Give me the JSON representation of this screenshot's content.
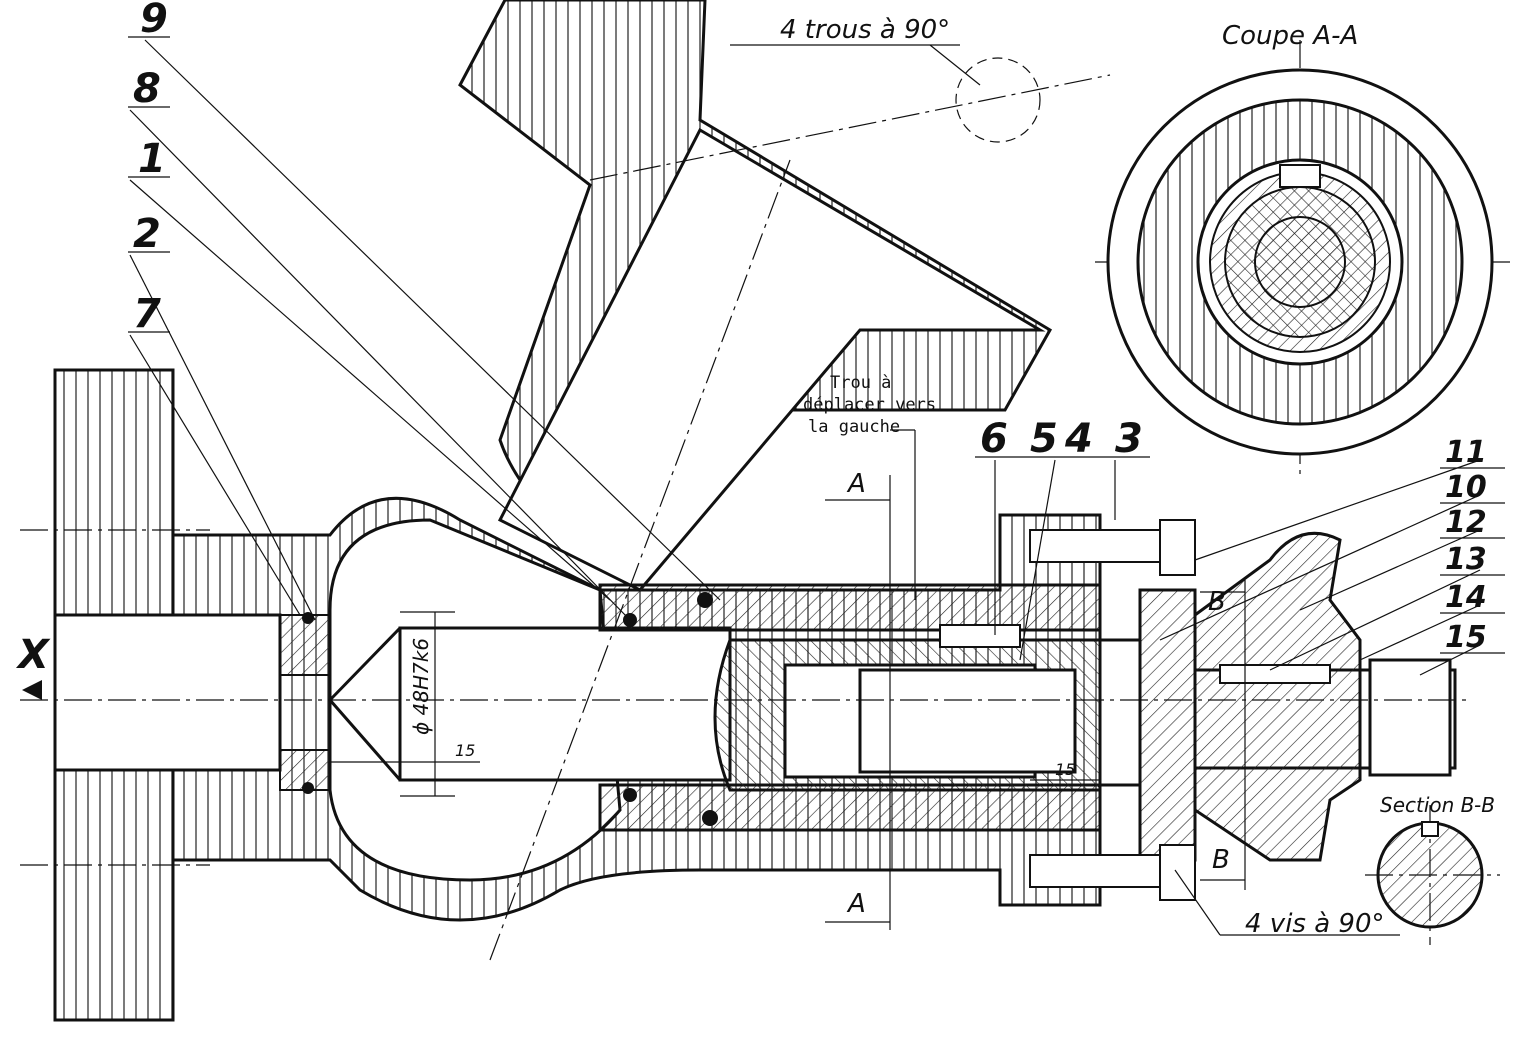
{
  "drawing": {
    "leader_labels": [
      "9",
      "8",
      "1",
      "2",
      "7"
    ],
    "top_right_labels": [
      "6",
      "5",
      "4",
      "3"
    ],
    "right_labels": [
      "11",
      "10",
      "12",
      "13",
      "14",
      "15"
    ],
    "axis_label": "X",
    "hole_note": "4 trous à 90°",
    "screw_note": "4 vis à 90°",
    "move_note": [
      "Trou à",
      "déplacer vers",
      "la gauche"
    ],
    "section_aa_title": "Coupe A-A",
    "section_bb_title": "Section B-B",
    "section_mark_a": "A",
    "section_mark_b": "B",
    "fit_dimension": "ϕ 48H7k6",
    "dim_15": "15"
  },
  "colors": {
    "ink": "#111111",
    "paper": "#ffffff"
  }
}
